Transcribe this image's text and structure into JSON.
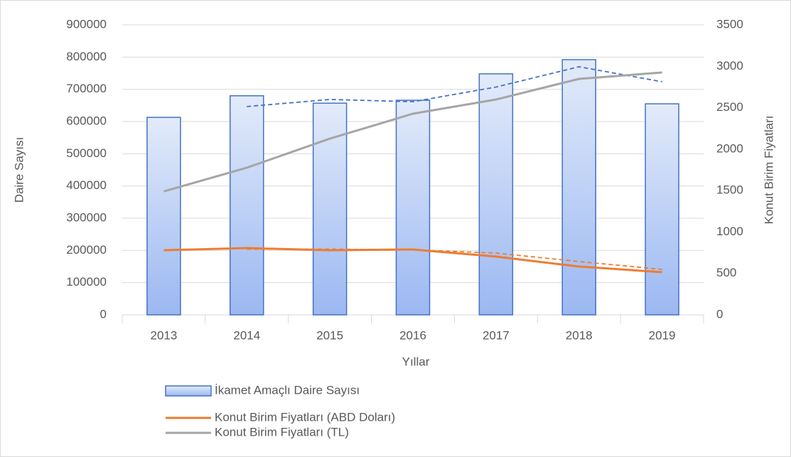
{
  "chart_data": {
    "type": "bar",
    "x_label": "Yıllar",
    "y_label": "Daire Sayısı",
    "y2_label": "Konut Birim Fiyatları",
    "categories": [
      "2013",
      "2014",
      "2015",
      "2016",
      "2017",
      "2018",
      "2019"
    ],
    "series": [
      {
        "name": "İkamet Amaçlı Daire Sayısı",
        "type": "bar",
        "color": "#4472c4",
        "values": [
          613000,
          680000,
          657000,
          666000,
          748000,
          792000,
          655000
        ]
      },
      {
        "name": "Konut Birim Fiyatları (ABD Doları)",
        "type": "line",
        "axis": "y2",
        "color": "#ed7d31",
        "values": [
          780,
          806,
          780,
          789,
          703,
          583,
          515
        ]
      },
      {
        "name": "Konut Birim Fiyatları (TL)",
        "type": "line",
        "axis": "y2",
        "color": "#a5a5a5",
        "values": [
          1490,
          1776,
          2127,
          2428,
          2599,
          2848,
          2925
        ]
      }
    ],
    "trendlines": [
      {
        "series": 0,
        "kind": "moving_average",
        "period": 2,
        "color": "#4472c4"
      },
      {
        "series": 1,
        "kind": "moving_average",
        "period": 2,
        "color": "#ed7d31"
      }
    ],
    "ylim": [
      0,
      900000
    ],
    "yticks": [
      0,
      100000,
      200000,
      300000,
      400000,
      500000,
      600000,
      700000,
      800000,
      900000
    ],
    "y2lim": [
      0,
      3500
    ],
    "y2ticks": [
      0,
      500,
      1000,
      1500,
      2000,
      2500,
      3000,
      3500
    ],
    "grid": true,
    "legend": "bottom-left"
  }
}
